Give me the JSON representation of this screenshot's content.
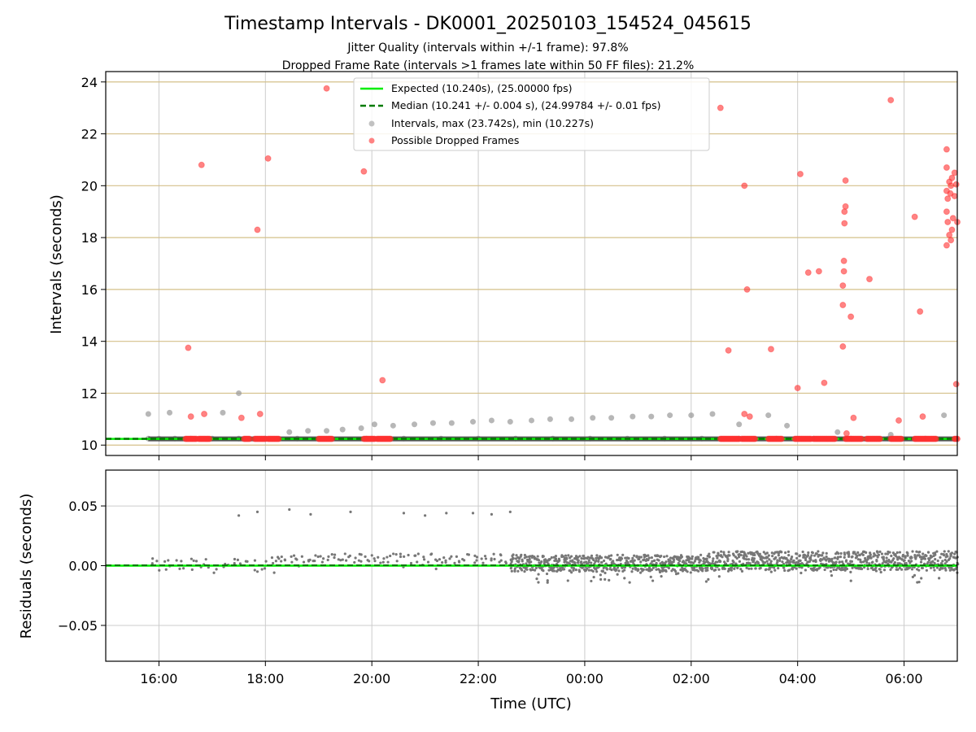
{
  "chart_data": [
    {
      "type": "scatter",
      "title": "Timestamp Intervals - DK0001_20250103_154524_045615",
      "subtitle_lines": [
        "Jitter Quality (intervals within +/-1 frame): 97.8%",
        "Dropped Frame Rate (intervals >1 frames late within 50 FF files): 21.2%"
      ],
      "xlabel": "",
      "ylabel": "Intervals (seconds)",
      "xlim_hours": [
        15.0,
        31.0
      ],
      "ylim": [
        9.6,
        24.4
      ],
      "yticks": [
        10,
        12,
        14,
        16,
        18,
        20,
        22,
        24
      ],
      "ytick_labels": [
        "10",
        "12",
        "14",
        "16",
        "18",
        "20",
        "22",
        "24"
      ],
      "grid": true,
      "legend_position": "top-center",
      "colors": {
        "expected": "#00ee00",
        "median": "#007a00",
        "intervals": "#999999",
        "dropped": "#ff3030",
        "hgrid": "#d4c08a",
        "vgrid": "#cccccc"
      },
      "series": [
        {
          "name": "Expected (10.240s), (25.00000 fps)",
          "kind": "hline",
          "y": 10.24
        },
        {
          "name": "Median (10.241 +/- 0.004 s), (24.99784 +/- 0.01 fps)",
          "kind": "hline-dashed",
          "y": 10.241
        },
        {
          "name": "Intervals, max (23.742s), min (10.227s)",
          "kind": "scatter",
          "points": [
            [
              15.8,
              11.2
            ],
            [
              16.2,
              11.25
            ],
            [
              17.2,
              11.25
            ],
            [
              17.5,
              12.0
            ],
            [
              18.45,
              10.5
            ],
            [
              18.8,
              10.55
            ],
            [
              19.15,
              10.55
            ],
            [
              19.45,
              10.6
            ],
            [
              19.8,
              10.65
            ],
            [
              20.05,
              10.8
            ],
            [
              20.4,
              10.75
            ],
            [
              20.8,
              10.8
            ],
            [
              21.15,
              10.85
            ],
            [
              21.5,
              10.85
            ],
            [
              21.9,
              10.9
            ],
            [
              22.25,
              10.95
            ],
            [
              22.6,
              10.9
            ],
            [
              23.0,
              10.95
            ],
            [
              23.35,
              11.0
            ],
            [
              23.75,
              11.0
            ],
            [
              24.15,
              11.05
            ],
            [
              24.5,
              11.05
            ],
            [
              24.9,
              11.1
            ],
            [
              25.25,
              11.1
            ],
            [
              25.6,
              11.15
            ],
            [
              26.0,
              11.15
            ],
            [
              26.4,
              11.2
            ],
            [
              26.9,
              10.8
            ],
            [
              27.45,
              11.15
            ],
            [
              27.8,
              10.75
            ],
            [
              28.75,
              10.5
            ],
            [
              29.75,
              10.4
            ],
            [
              30.75,
              11.15
            ],
            [
              15.8,
              10.25
            ],
            [
              16.0,
              10.25
            ],
            [
              16.3,
              10.25
            ],
            [
              16.6,
              10.25
            ],
            [
              17.0,
              10.25
            ],
            [
              17.5,
              10.25
            ],
            [
              18.0,
              10.25
            ],
            [
              18.6,
              10.25
            ],
            [
              19.2,
              10.25
            ],
            [
              19.9,
              10.25
            ],
            [
              20.6,
              10.25
            ],
            [
              21.3,
              10.25
            ],
            [
              22.0,
              10.25
            ],
            [
              22.7,
              10.25
            ],
            [
              23.4,
              10.25
            ],
            [
              24.1,
              10.25
            ],
            [
              24.8,
              10.25
            ],
            [
              25.5,
              10.25
            ],
            [
              26.2,
              10.25
            ],
            [
              26.9,
              10.25
            ],
            [
              27.6,
              10.25
            ],
            [
              28.3,
              10.25
            ],
            [
              29.0,
              10.25
            ],
            [
              29.7,
              10.25
            ],
            [
              30.4,
              10.25
            ]
          ]
        },
        {
          "name": "Possible Dropped Frames",
          "kind": "scatter",
          "points": [
            [
              16.55,
              13.75
            ],
            [
              16.6,
              11.1
            ],
            [
              16.8,
              20.8
            ],
            [
              16.85,
              11.2
            ],
            [
              17.55,
              11.05
            ],
            [
              17.85,
              18.3
            ],
            [
              17.9,
              11.2
            ],
            [
              18.05,
              21.05
            ],
            [
              19.15,
              23.75
            ],
            [
              19.85,
              20.55
            ],
            [
              20.2,
              12.5
            ],
            [
              26.55,
              23.0
            ],
            [
              26.7,
              13.65
            ],
            [
              27.0,
              20.0
            ],
            [
              27.05,
              16.0
            ],
            [
              27.0,
              11.2
            ],
            [
              27.1,
              11.1
            ],
            [
              27.5,
              13.7
            ],
            [
              28.0,
              12.2
            ],
            [
              28.05,
              20.45
            ],
            [
              28.2,
              16.65
            ],
            [
              28.4,
              16.7
            ],
            [
              28.5,
              12.4
            ],
            [
              28.85,
              13.8
            ],
            [
              28.85,
              15.4
            ],
            [
              28.85,
              16.15
            ],
            [
              28.87,
              16.7
            ],
            [
              28.87,
              17.1
            ],
            [
              28.88,
              18.55
            ],
            [
              28.88,
              19.0
            ],
            [
              28.9,
              19.2
            ],
            [
              28.9,
              20.2
            ],
            [
              28.92,
              10.45
            ],
            [
              29.0,
              14.95
            ],
            [
              29.05,
              11.05
            ],
            [
              29.35,
              16.4
            ],
            [
              29.75,
              23.3
            ],
            [
              29.9,
              10.95
            ],
            [
              30.2,
              18.8
            ],
            [
              30.3,
              15.15
            ],
            [
              30.35,
              11.1
            ],
            [
              30.8,
              21.4
            ],
            [
              30.8,
              20.7
            ],
            [
              30.8,
              19.8
            ],
            [
              30.82,
              19.5
            ],
            [
              30.85,
              20.15
            ],
            [
              30.87,
              19.7
            ],
            [
              30.88,
              20.0
            ],
            [
              30.8,
              19.0
            ],
            [
              30.82,
              18.6
            ],
            [
              30.85,
              18.1
            ],
            [
              30.8,
              17.7
            ],
            [
              30.9,
              18.3
            ],
            [
              30.88,
              17.9
            ],
            [
              30.92,
              18.75
            ],
            [
              30.95,
              20.5
            ],
            [
              30.95,
              19.6
            ],
            [
              31.0,
              18.6
            ],
            [
              30.98,
              20.05
            ],
            [
              30.98,
              12.35
            ],
            [
              30.9,
              20.3
            ]
          ],
          "clusters_at_y": 10.24,
          "clusters_hours": [
            [
              16.5,
              16.7
            ],
            [
              16.75,
              16.95
            ],
            [
              17.6,
              17.7
            ],
            [
              17.8,
              18.0
            ],
            [
              18.05,
              18.25
            ],
            [
              19.0,
              19.25
            ],
            [
              19.85,
              20.05
            ],
            [
              20.1,
              20.35
            ],
            [
              26.55,
              26.9
            ],
            [
              26.95,
              27.2
            ],
            [
              27.45,
              27.7
            ],
            [
              27.95,
              28.25
            ],
            [
              28.3,
              28.7
            ],
            [
              28.9,
              29.2
            ],
            [
              29.3,
              29.55
            ],
            [
              29.75,
              29.95
            ],
            [
              30.2,
              30.6
            ],
            [
              30.95,
              31.0
            ]
          ]
        }
      ]
    },
    {
      "type": "scatter",
      "title": "",
      "xlabel": "Time (UTC)",
      "ylabel": "Residuals (seconds)",
      "xlim_hours": [
        15.0,
        31.0
      ],
      "ylim": [
        -0.08,
        0.08
      ],
      "yticks": [
        -0.05,
        0.0,
        0.05
      ],
      "ytick_labels": [
        "−0.05",
        "0.00",
        "0.05"
      ],
      "xticks_hours": [
        16,
        18,
        20,
        22,
        24,
        26,
        28,
        30
      ],
      "xtick_labels": [
        "16:00",
        "18:00",
        "20:00",
        "22:00",
        "00:00",
        "02:00",
        "04:00",
        "06:00"
      ],
      "grid": true,
      "series": [
        {
          "name": "",
          "kind": "scatter",
          "outlier_points": [
            [
              17.5,
              0.042
            ],
            [
              17.85,
              0.045
            ],
            [
              18.45,
              0.047
            ],
            [
              18.85,
              0.043
            ],
            [
              19.6,
              0.045
            ],
            [
              20.6,
              0.044
            ],
            [
              21.0,
              0.042
            ],
            [
              21.4,
              0.044
            ],
            [
              21.9,
              0.044
            ],
            [
              22.25,
              0.043
            ],
            [
              22.6,
              0.045
            ]
          ],
          "bands": [
            {
              "from_hour": 15.8,
              "to_hour": 18.1,
              "center": 0.0,
              "spread": 0.006,
              "step": 0.12
            },
            {
              "from_hour": 18.1,
              "to_hour": 22.6,
              "center": 0.006,
              "spread": 0.004,
              "step": 0.08
            },
            {
              "from_hour": 22.6,
              "to_hour": 26.3,
              "center": 0.002,
              "spread": 0.007,
              "step": 0.02
            },
            {
              "from_hour": 26.3,
              "to_hour": 31.0,
              "center": 0.004,
              "spread": 0.008,
              "step": 0.02
            }
          ]
        }
      ]
    }
  ]
}
